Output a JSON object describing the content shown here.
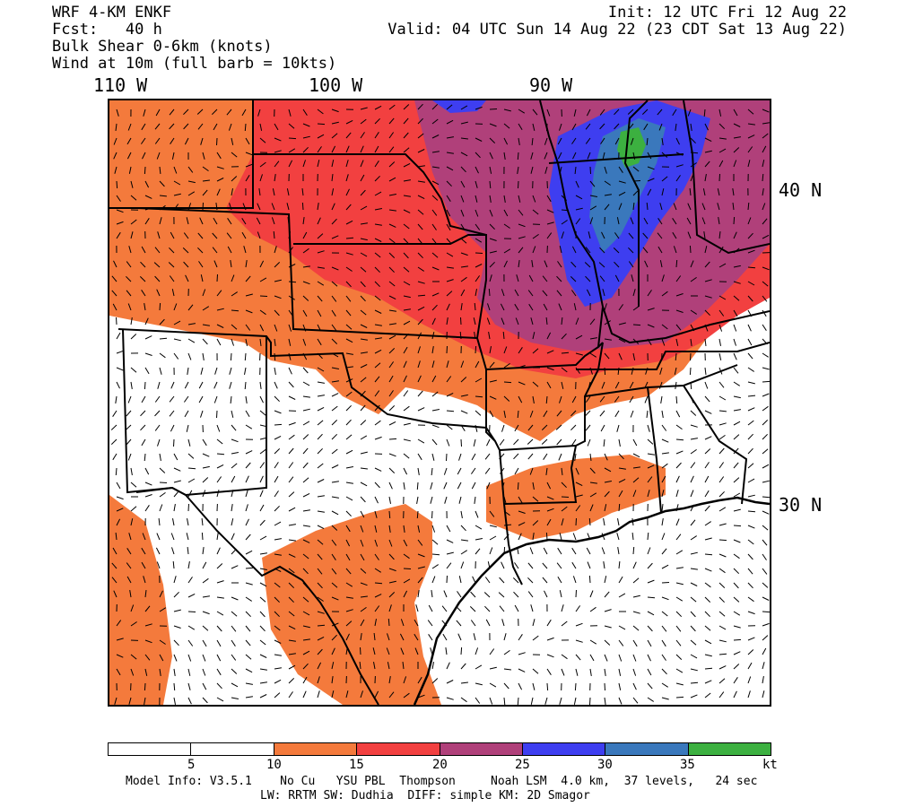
{
  "header": {
    "model": "WRF 4-KM ENKF",
    "fcst": "Fcst:   40 h",
    "field": "Bulk Shear 0-6km (knots)",
    "wind": "Wind at 10m (full barb = 10kts)",
    "init": "Init: 12 UTC Fri 12 Aug 22",
    "valid": "Valid: 04 UTC Sun 14 Aug 22 (23 CDT Sat 13 Aug 22)"
  },
  "axes": {
    "lon_labels": [
      "110 W",
      "100 W",
      "90 W"
    ],
    "lat_labels": [
      "40 N",
      "30 N"
    ]
  },
  "colorbar": {
    "colors": [
      "#ffffff",
      "#ffffff",
      "#f47a3c",
      "#f24040",
      "#b0407a",
      "#3e3ef0",
      "#3a78bc",
      "#3cb040"
    ],
    "labels": [
      "5",
      "10",
      "15",
      "20",
      "25",
      "30",
      "35",
      "kt"
    ]
  },
  "map_colors": {
    "orange": "#f47a3c",
    "red": "#f24040",
    "magenta": "#b0407a",
    "blue": "#3e3ef0",
    "steel": "#3a78bc",
    "green": "#3cb040",
    "water": "#ffffff"
  },
  "footer": {
    "line1": "Model Info: V3.5.1    No Cu   YSU PBL  Thompson     Noah LSM  4.0 km,  37 levels,   24 sec",
    "line2": "LW: RRTM SW: Dudhia  DIFF: simple KM: 2D Smagor"
  }
}
